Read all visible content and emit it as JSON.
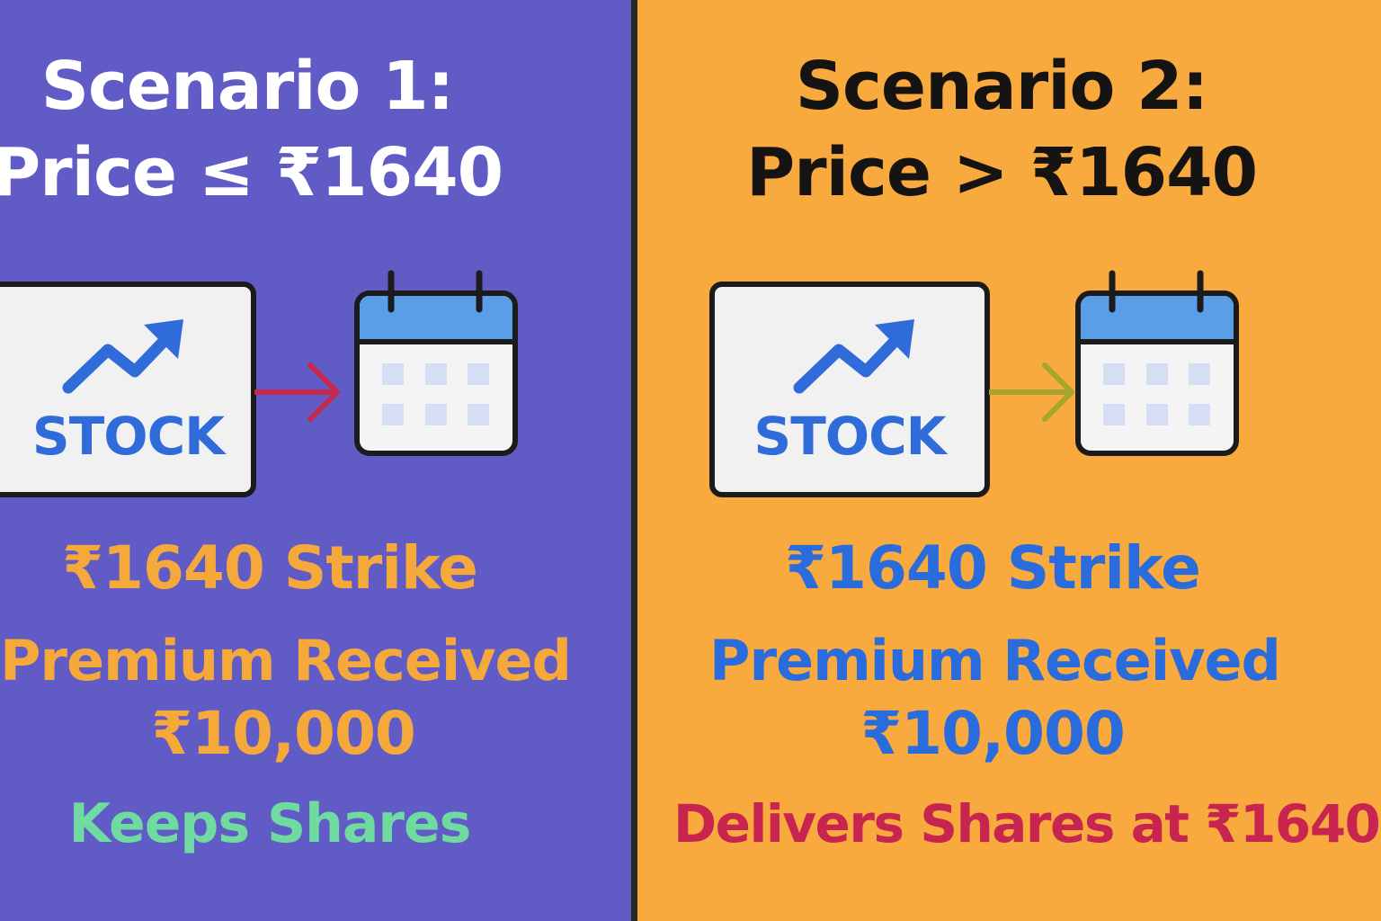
{
  "scenario1": {
    "title_line1": "Scenario 1:",
    "title_line2": "Price ≤ ₹1640",
    "stock_label": "STOCK",
    "strike": "₹1640 Strike",
    "premium_label": "Premium Received",
    "premium_amount": "₹10,000",
    "outcome": "Keeps Shares",
    "colors": {
      "background": "#615bc6",
      "accent": "#f6a93b",
      "outcome": "#6fdba0",
      "arrow": "#c42a4e"
    }
  },
  "scenario2": {
    "title_line1": "Scenario 2:",
    "title_line2": "Price > ₹1640",
    "stock_label": "STOCK",
    "strike": "₹1640 Strike",
    "premium_label": "Premium Received",
    "premium_amount": "₹10,000",
    "outcome": "Delivers Shares at ₹1640",
    "colors": {
      "background": "#f9aa3e",
      "accent": "#2b6cdd",
      "outcome": "#c7244f",
      "arrow": "#a6a42e"
    }
  },
  "icons": [
    "trend-up-icon",
    "arrow-right-icon",
    "calendar-icon"
  ]
}
